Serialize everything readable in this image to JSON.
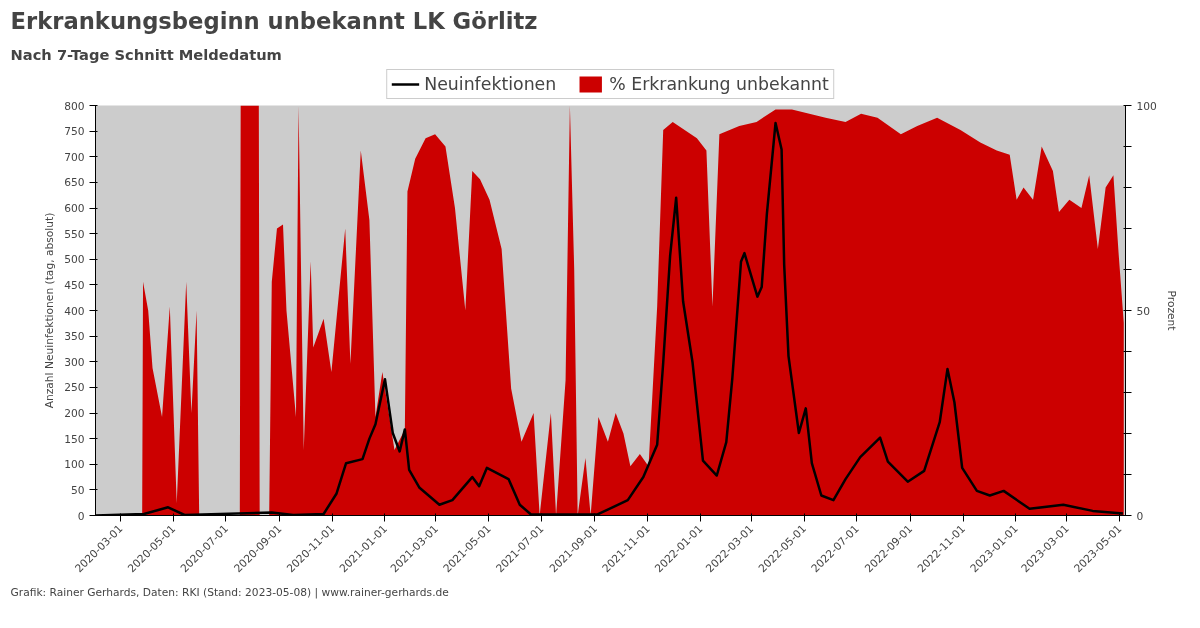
{
  "chart_data": {
    "type": "area",
    "title": "Erkrankungsbeginn unbekannt LK Görlitz",
    "subtitle": "Nach 7-Tage Schnitt Meldedatum",
    "ylabel": "Anzahl Neuinfektionen (tag, absolut)",
    "y2label": "Prozent",
    "annotations": [
      "Grafik: Rainer Gerhards, Daten: RKI (Stand: 2023-05-08) | www.rainer-gerhards.de"
    ],
    "xlim": [
      "2020-02-01",
      "2023-05-08"
    ],
    "xticks": [
      "2020-03-01",
      "2020-05-01",
      "2020-07-01",
      "2020-09-01",
      "2020-11-01",
      "2021-01-01",
      "2021-03-01",
      "2021-05-01",
      "2021-07-01",
      "2021-09-01",
      "2021-11-01",
      "2022-01-01",
      "2022-03-01",
      "2022-05-01",
      "2022-07-01",
      "2022-09-01",
      "2022-11-01",
      "2023-01-01",
      "2023-03-01",
      "2023-05-01"
    ],
    "ylim": [
      0,
      800
    ],
    "yticks": [
      0,
      50,
      100,
      150,
      200,
      250,
      300,
      350,
      400,
      450,
      500,
      550,
      600,
      650,
      700,
      750,
      800
    ],
    "y2lim": [
      0,
      100
    ],
    "y2ticks": [
      0,
      {
        "value": 10,
        "label": null
      },
      {
        "value": 20,
        "label": null
      },
      {
        "value": 30,
        "label": null
      },
      {
        "value": 40,
        "label": null
      },
      50,
      {
        "value": 60,
        "label": null
      },
      {
        "value": 70,
        "label": null
      },
      {
        "value": 80,
        "label": null
      },
      {
        "value": 90,
        "label": null
      },
      100
    ],
    "grid": false,
    "legend": "top",
    "series": [
      {
        "name": "Neuinfektionen",
        "type": "line",
        "color": "#000000",
        "x": [
          "2020-02-01",
          "2020-03-28",
          "2020-04-25",
          "2020-05-14",
          "2020-08-23",
          "2020-09-17",
          "2020-10-22",
          "2020-11-06",
          "2020-11-17",
          "2020-12-06",
          "2020-12-14",
          "2020-12-21",
          "2021-01-01",
          "2021-01-10",
          "2021-01-18",
          "2021-01-24",
          "2021-01-29",
          "2021-02-10",
          "2021-03-05",
          "2021-03-20",
          "2021-04-12",
          "2021-04-20",
          "2021-04-29",
          "2021-05-24",
          "2021-06-06",
          "2021-06-19",
          "2021-09-04",
          "2021-10-09",
          "2021-10-27",
          "2021-11-12",
          "2021-11-19",
          "2021-11-27",
          "2021-12-04",
          "2021-12-12",
          "2021-12-23",
          "2022-01-04",
          "2022-01-20",
          "2022-01-31",
          "2022-02-07",
          "2022-02-17",
          "2022-02-21",
          "2022-03-08",
          "2022-03-13",
          "2022-03-19",
          "2022-03-29",
          "2022-04-05",
          "2022-04-08",
          "2022-04-13",
          "2022-04-25",
          "2022-05-03",
          "2022-05-10",
          "2022-05-21",
          "2022-06-04",
          "2022-06-18",
          "2022-07-05",
          "2022-07-28",
          "2022-08-06",
          "2022-08-29",
          "2022-09-17",
          "2022-10-05",
          "2022-10-14",
          "2022-10-22",
          "2022-10-31",
          "2022-11-17",
          "2022-12-02",
          "2022-12-18",
          "2023-01-17",
          "2023-02-25",
          "2023-03-31",
          "2023-05-05"
        ],
        "values": [
          0,
          3,
          16,
          1,
          6,
          1,
          3,
          43,
          102,
          110,
          150,
          178,
          266,
          161,
          125,
          168,
          89,
          54,
          21,
          30,
          75,
          57,
          93,
          71,
          21,
          2,
          2,
          30,
          75,
          138,
          298,
          507,
          620,
          418,
          298,
          107,
          78,
          143,
          268,
          495,
          512,
          427,
          446,
          589,
          766,
          714,
          489,
          311,
          161,
          209,
          102,
          39,
          30,
          71,
          114,
          152,
          105,
          66,
          87,
          182,
          286,
          221,
          93,
          48,
          39,
          48,
          13,
          21,
          9,
          4
        ]
      },
      {
        "name": "% Erkrankung unbekannt",
        "axis": "y2",
        "color": "#cc0000",
        "x": [
          "2020-02-01",
          "2020-03-26",
          "2020-03-27",
          "2020-04-02",
          "2020-04-07",
          "2020-04-18",
          "2020-04-27",
          "2020-05-05",
          "2020-05-16",
          "2020-05-22",
          "2020-05-28",
          "2020-05-31",
          "2020-07-17",
          "2020-07-18",
          "2020-08-08",
          "2020-08-09",
          "2020-08-20",
          "2020-08-23",
          "2020-08-29",
          "2020-09-05",
          "2020-09-09",
          "2020-09-20",
          "2020-09-23",
          "2020-09-29",
          "2020-10-07",
          "2020-10-10",
          "2020-10-22",
          "2020-10-31",
          "2020-11-16",
          "2020-11-22",
          "2020-12-04",
          "2020-12-14",
          "2020-12-21",
          "2020-12-29",
          "2021-01-12",
          "2021-01-24",
          "2021-01-27",
          "2021-02-05",
          "2021-02-17",
          "2021-02-28",
          "2021-03-12",
          "2021-03-23",
          "2021-04-04",
          "2021-04-12",
          "2021-04-21",
          "2021-05-02",
          "2021-05-16",
          "2021-05-27",
          "2021-06-08",
          "2021-06-22",
          "2021-06-29",
          "2021-07-12",
          "2021-07-18",
          "2021-07-29",
          "2021-08-03",
          "2021-08-08",
          "2021-08-12",
          "2021-08-21",
          "2021-08-27",
          "2021-09-05",
          "2021-09-16",
          "2021-09-25",
          "2021-10-04",
          "2021-10-12",
          "2021-10-23",
          "2021-11-02",
          "2021-11-12",
          "2021-11-19",
          "2021-11-30",
          "2021-12-28",
          "2022-01-08",
          "2022-01-15",
          "2022-01-23",
          "2022-02-15",
          "2022-03-07",
          "2022-03-29",
          "2022-04-17",
          "2022-05-26",
          "2022-06-18",
          "2022-07-06",
          "2022-07-25",
          "2022-08-21",
          "2022-09-09",
          "2022-10-02",
          "2022-10-29",
          "2022-11-21",
          "2022-12-10",
          "2022-12-25",
          "2023-01-02",
          "2023-01-10",
          "2023-01-21",
          "2023-01-31",
          "2023-02-13",
          "2023-02-20",
          "2023-03-04",
          "2023-03-18",
          "2023-03-27",
          "2023-04-06",
          "2023-04-15",
          "2023-04-24",
          "2023-04-30",
          "2023-05-06"
        ],
        "values": [
          0,
          0,
          57,
          50,
          36,
          24,
          51,
          3,
          57,
          25,
          50,
          0,
          0,
          100,
          100,
          0,
          0,
          57,
          70,
          71,
          50,
          24,
          100,
          16,
          62,
          41,
          48,
          35,
          70,
          37,
          89,
          72,
          24,
          35,
          16,
          21,
          79,
          87,
          92,
          93,
          90,
          75,
          50,
          84,
          82,
          77,
          65,
          31,
          18,
          25,
          0,
          25,
          0,
          33,
          100,
          60,
          0,
          14,
          0,
          24,
          18,
          25,
          20,
          12,
          15,
          12,
          51,
          94,
          96,
          92,
          89,
          51,
          93,
          95,
          96,
          99,
          99,
          97,
          96,
          98,
          97,
          93,
          95,
          97,
          94,
          91,
          89,
          88,
          77,
          80,
          77,
          90,
          84,
          74,
          77,
          75,
          83,
          65,
          80,
          83,
          64,
          47
        ]
      }
    ]
  }
}
